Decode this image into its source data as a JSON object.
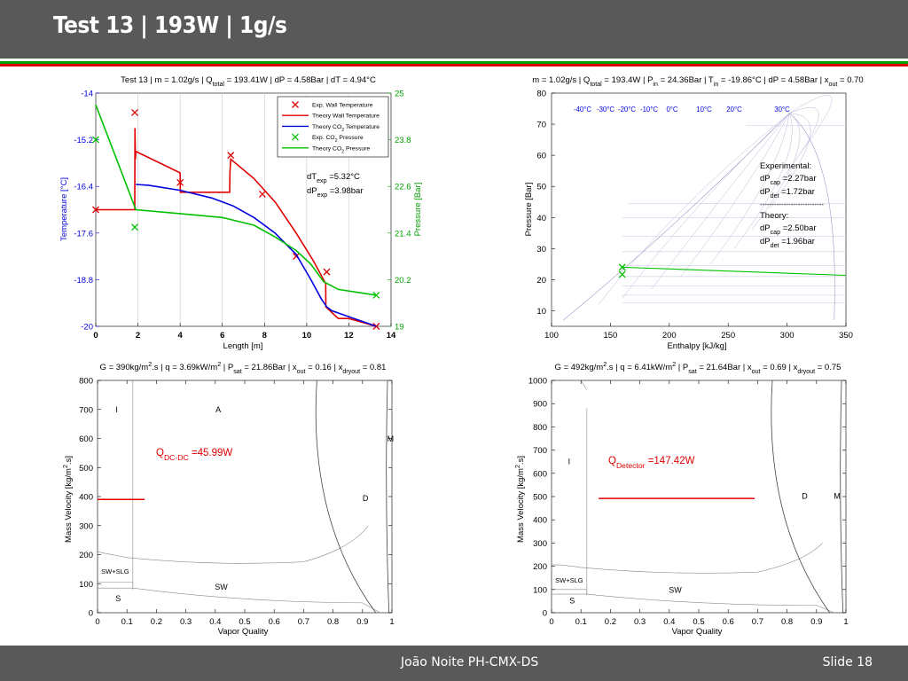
{
  "slide": {
    "title": "Test 13 |  193W | 1g/s",
    "author": "João Noite PH-CMX-DS",
    "slide_number": "Slide 18",
    "colors": {
      "header_bg": "#595959",
      "stripe_green": "#00a000",
      "stripe_red": "#e00000",
      "stripe_white": "#ffffff"
    }
  },
  "chart_data": [
    {
      "id": "chart1",
      "type": "line",
      "title_parts": [
        "Test 13 | m = 1.02g/s | Q",
        "total",
        " = 193.41W | dP = 4.58Bar | dT = 4.94°C"
      ],
      "xlabel": "Length [m]",
      "ylabel": "Temperature [°C]",
      "y2label": "Pressure [Bar]",
      "xlim": [
        0,
        14
      ],
      "ylim": [
        -20,
        -14
      ],
      "y2lim": [
        19,
        25
      ],
      "x_ticks": [
        "0",
        "2",
        "4",
        "6",
        "8",
        "10",
        "12",
        "14"
      ],
      "y_ticks": [
        "-14",
        "-15.2",
        "-16.4",
        "-17.6",
        "-18.8",
        "-20"
      ],
      "y2_ticks": [
        "25",
        "23.8",
        "22.6",
        "21.4",
        "20.2",
        "19"
      ],
      "legend": [
        {
          "label": "Exp. Wall Temperature",
          "color": "#e00000",
          "marker": "x"
        },
        {
          "label": "Theory  Wall Temperature",
          "color": "#e00000",
          "marker": "line"
        },
        {
          "label_parts": [
            "Theory  CO",
            "2",
            " Temperature"
          ],
          "label": "Theory  CO2 Temperature",
          "color": "#0000e0",
          "marker": "line"
        },
        {
          "label_parts": [
            "Exp. CO",
            "2",
            " Pressure"
          ],
          "label": "Exp. CO2 Pressure",
          "color": "#00c000",
          "marker": "x"
        },
        {
          "label_parts": [
            "Theory  CO",
            "2",
            " Pressure"
          ],
          "label": "Theory  CO2 Pressure",
          "color": "#00c000",
          "marker": "line"
        }
      ],
      "annotation": {
        "line1": [
          "dT",
          "exp",
          " =5.32°C"
        ],
        "line2": [
          "dP",
          "exp",
          " =3.98bar"
        ]
      },
      "series": [
        {
          "name": "Exp. Wall Temperature",
          "kind": "scatter",
          "axis": "left",
          "color": "#e00000",
          "x": [
            0,
            1.85,
            4.0,
            6.4,
            7.9,
            9.5,
            10.95,
            13.3
          ],
          "y": [
            -17.0,
            -14.5,
            -16.3,
            -15.6,
            -16.6,
            -18.2,
            -18.6,
            -20.0
          ]
        },
        {
          "name": "Theory  Wall Temperature",
          "kind": "line",
          "axis": "left",
          "color": "#e00000",
          "x": [
            0,
            1.85,
            1.86,
            1.88,
            1.9,
            4.0,
            4.01,
            6.35,
            6.36,
            6.4,
            7.5,
            8.5,
            9.5,
            10.3,
            10.9,
            10.91,
            11.5,
            12.0,
            13.3
          ],
          "y": [
            -17.0,
            -17.0,
            -14.9,
            -15.7,
            -15.5,
            -16.05,
            -16.55,
            -16.55,
            -16.05,
            -15.7,
            -16.2,
            -16.8,
            -17.6,
            -18.3,
            -18.9,
            -19.5,
            -19.8,
            -19.8,
            -20.0
          ]
        },
        {
          "name": "Theory  CO2 Temperature",
          "kind": "line",
          "axis": "left",
          "color": "#0000e0",
          "x": [
            1.9,
            2.5,
            4.0,
            5.5,
            6.5,
            7.5,
            8.5,
            9.5,
            10.2,
            10.7,
            10.95,
            11.2,
            13.3
          ],
          "y": [
            -16.35,
            -16.37,
            -16.5,
            -16.7,
            -16.9,
            -17.2,
            -17.6,
            -18.15,
            -18.8,
            -19.3,
            -19.5,
            -19.6,
            -20.0
          ]
        },
        {
          "name": "Exp. CO2 Pressure",
          "kind": "scatter",
          "axis": "right",
          "color": "#00c000",
          "x": [
            0,
            1.85,
            13.3
          ],
          "y": [
            23.8,
            21.55,
            19.8
          ]
        },
        {
          "name": "Theory  CO2 Pressure",
          "kind": "line",
          "axis": "right",
          "color": "#00c000",
          "x": [
            0,
            1.9,
            4.0,
            6.0,
            7.5,
            8.5,
            9.5,
            10.2,
            10.8,
            11.5,
            13.3
          ],
          "y": [
            24.7,
            22.0,
            21.9,
            21.8,
            21.6,
            21.3,
            20.95,
            20.6,
            20.15,
            19.95,
            19.8
          ]
        }
      ]
    },
    {
      "id": "chart2",
      "type": "line",
      "title_parts": [
        "m = 1.02g/s | Q",
        "total",
        " = 193.4W | P",
        "in",
        " = 24.36Bar | T",
        "in",
        " = -19.86°C | dP = 4.58Bar | x",
        "out",
        " = 0.70"
      ],
      "xlabel": "Enthalpy [kJ/kg]",
      "ylabel": "Pressure [Bar]",
      "xlim": [
        100,
        350
      ],
      "ylim": [
        5,
        80
      ],
      "x_ticks": [
        "100",
        "150",
        "200",
        "250",
        "300",
        "350"
      ],
      "y_ticks": [
        "80",
        "70",
        "60",
        "50",
        "40",
        "30",
        "20",
        "10"
      ],
      "isotherm_labels": [
        "-40°C",
        "-30°C",
        "-20°C",
        "-10°C",
        "0°C",
        "10°C",
        "20°C",
        "30°C"
      ],
      "annotation": {
        "experimental_title": "Experimental:",
        "exp_dp_cap": [
          "dP",
          "cap",
          " =2.27bar"
        ],
        "exp_dp_det": [
          "dP",
          "det",
          " =1.72bar"
        ],
        "separator": "---------------------------",
        "theory_title": "Theory:",
        "th_dp_cap": [
          "dP",
          "cap",
          " =2.50bar"
        ],
        "th_dp_det": [
          "dP",
          "det",
          " =1.96bar"
        ]
      },
      "series": [
        {
          "name": "Exp. points",
          "kind": "scatter",
          "color": "#00c000",
          "x": [
            160,
            160
          ],
          "y": [
            24.0,
            21.7
          ]
        },
        {
          "name": "Theory",
          "kind": "line",
          "color": "#00c000",
          "x": [
            160,
            350
          ],
          "y": [
            24.0,
            21.4
          ]
        }
      ]
    },
    {
      "id": "chart3",
      "type": "line",
      "title_parts": [
        "G = 390kg/m",
        "2",
        ".s | q = 3.69kW/m",
        "2",
        " | P",
        "sat",
        " = 21.86Bar | x",
        "out",
        " = 0.16 | x",
        "dryout",
        " = 0.81"
      ],
      "xlabel": "Vapor Quality",
      "ylabel_parts": [
        "Mass Velocity [kg/m",
        "2",
        ".s]"
      ],
      "xlim": [
        0,
        1
      ],
      "ylim": [
        0,
        800
      ],
      "x_ticks": [
        "0",
        "0.1",
        "0.2",
        "0.3",
        "0.4",
        "0.5",
        "0.6",
        "0.7",
        "0.8",
        "0.9",
        "1"
      ],
      "y_ticks": [
        "800",
        "700",
        "600",
        "500",
        "400",
        "300",
        "200",
        "100",
        "0"
      ],
      "regions": [
        {
          "label": "I",
          "x": 0.065,
          "y": 690
        },
        {
          "label": "A",
          "x": 0.41,
          "y": 690
        },
        {
          "label": "M",
          "x": 0.995,
          "y": 590
        },
        {
          "label": "D",
          "x": 0.91,
          "y": 385
        },
        {
          "label": "SW+SLG",
          "x": 0.06,
          "y": 135
        },
        {
          "label": "SW",
          "x": 0.42,
          "y": 80
        },
        {
          "label": "S",
          "x": 0.07,
          "y": 40
        }
      ],
      "heat_label": [
        "Q",
        "DC-DC",
        " =45.99W"
      ],
      "operating_line": {
        "x": [
          0,
          0.16
        ],
        "y": 390,
        "color": "#e00000"
      }
    },
    {
      "id": "chart4",
      "type": "line",
      "title_parts": [
        "G = 492kg/m",
        "2",
        ".s | q = 6.41kW/m",
        "2",
        " | P",
        "sat",
        " = 21.64Bar | x",
        "out",
        " = 0.69 | x",
        "dryout",
        " = 0.75"
      ],
      "xlabel": "Vapor Quality",
      "ylabel_parts": [
        "Mass Velocity [kg/m",
        "2",
        ".s]"
      ],
      "xlim": [
        0,
        1
      ],
      "ylim": [
        0,
        1000
      ],
      "x_ticks": [
        "0",
        "0.1",
        "0.2",
        "0.3",
        "0.4",
        "0.5",
        "0.6",
        "0.7",
        "0.8",
        "0.9",
        "1"
      ],
      "y_ticks": [
        "1000",
        "900",
        "800",
        "700",
        "600",
        "500",
        "400",
        "300",
        "200",
        "100",
        "0"
      ],
      "regions": [
        {
          "label": "I",
          "x": 0.06,
          "y": 640
        },
        {
          "label": "D",
          "x": 0.86,
          "y": 490
        },
        {
          "label": "M",
          "x": 0.97,
          "y": 490
        },
        {
          "label": "SW+SLG",
          "x": 0.06,
          "y": 130
        },
        {
          "label": "SW",
          "x": 0.42,
          "y": 85
        },
        {
          "label": "S",
          "x": 0.07,
          "y": 40
        }
      ],
      "heat_label": [
        "Q",
        "Detector",
        " =147.42W"
      ],
      "operating_line": {
        "x": [
          0.16,
          0.69
        ],
        "y": 492,
        "color": "#e00000"
      }
    }
  ]
}
